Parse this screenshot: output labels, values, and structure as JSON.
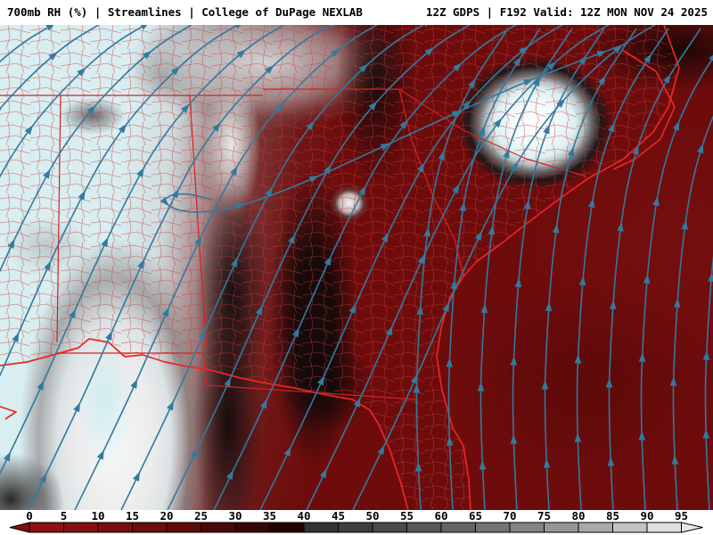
{
  "header": {
    "left": "700mb RH (%) | Streamlines | College of DuPage NEXLAB",
    "right": "12Z GDPS | F192 Valid: 12Z MON NOV 24 2025",
    "product": "700mb RH (%)",
    "overlay": "Streamlines",
    "source": "College of DuPage NEXLAB",
    "model": "12Z GDPS",
    "forecast_hour": "F192",
    "valid_time": "12Z MON NOV 24 2025"
  },
  "colorbar": {
    "unit": "%",
    "labels": [
      "0",
      "5",
      "10",
      "15",
      "20",
      "25",
      "30",
      "35",
      "40",
      "45",
      "50",
      "55",
      "60",
      "65",
      "70",
      "75",
      "80",
      "85",
      "90",
      "95"
    ],
    "segment_colors": [
      "#8c1212",
      "#851010",
      "#7b0e0e",
      "#6e0c0c",
      "#5e0a0a",
      "#4b0707",
      "#360505",
      "#200303",
      "#333333",
      "#3e3e3e",
      "#4a4a4a",
      "#575757",
      "#656565",
      "#747474",
      "#848484",
      "#969696",
      "#aaaaaa",
      "#c2c2c2",
      "#e0e0e0"
    ],
    "left_arrow_color": "#7f0f0f",
    "right_arrow_color": "#d8eef2"
  },
  "map": {
    "region": "Southeastern United States",
    "colors": {
      "low_rh": "#6e0c0c",
      "high_rh": "#d9eef1",
      "streamline": "#337a9e",
      "border": "#e02222",
      "county": "#c53b3b"
    }
  }
}
